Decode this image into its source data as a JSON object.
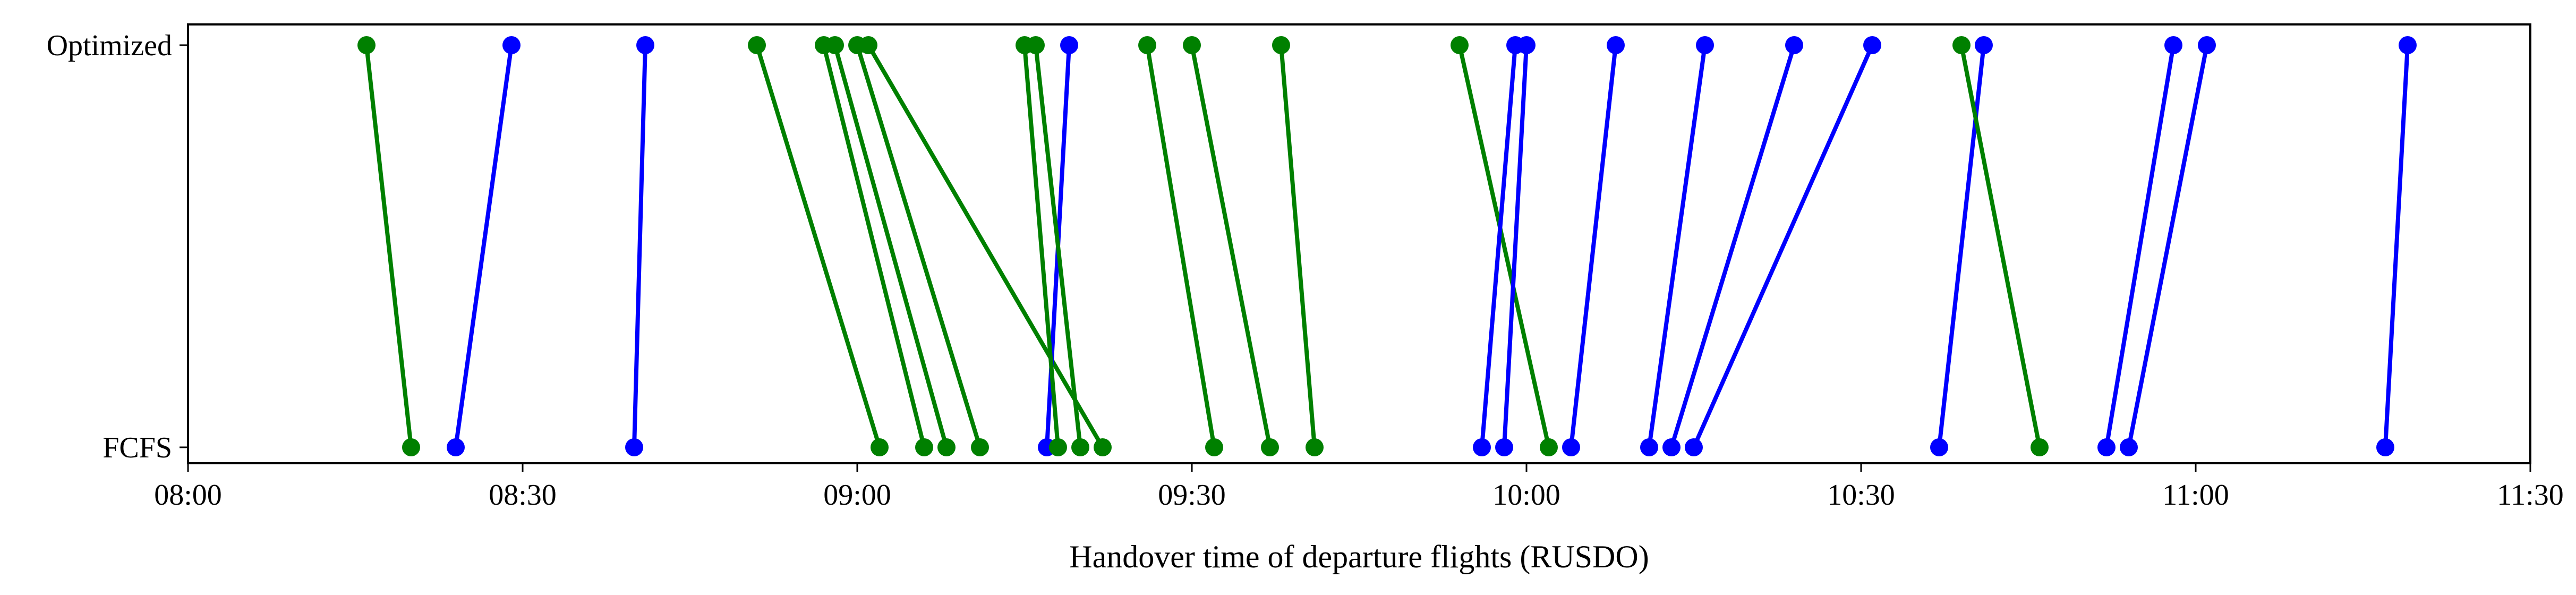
{
  "chart_data": {
    "type": "scatter",
    "xlabel": "Handover time of departure flights (RUSDO)",
    "ylabel": "",
    "x_unit": "time (HH:MM)",
    "xlim": [
      "08:00",
      "11:30"
    ],
    "x_ticks": [
      "08:00",
      "08:30",
      "09:00",
      "09:30",
      "10:00",
      "10:30",
      "11:00",
      "11:30"
    ],
    "y_categories": [
      "FCFS",
      "Optimized"
    ],
    "grid": false,
    "legend": "none",
    "colors": {
      "early": "#008000",
      "delayed": "#0000ff"
    },
    "series": [
      {
        "color": "early",
        "fcfs": "08:20",
        "optimized": "08:16"
      },
      {
        "color": "delayed",
        "fcfs": "08:24",
        "optimized": "08:29"
      },
      {
        "color": "delayed",
        "fcfs": "08:40",
        "optimized": "08:41"
      },
      {
        "color": "early",
        "fcfs": "09:02",
        "optimized": "08:51"
      },
      {
        "color": "early",
        "fcfs": "09:06",
        "optimized": "08:57"
      },
      {
        "color": "early",
        "fcfs": "09:08",
        "optimized": "08:58"
      },
      {
        "color": "early",
        "fcfs": "09:11",
        "optimized": "09:00"
      },
      {
        "color": "early",
        "fcfs": "09:22",
        "optimized": "09:01"
      },
      {
        "color": "delayed",
        "fcfs": "09:17",
        "optimized": "09:19"
      },
      {
        "color": "early",
        "fcfs": "09:18",
        "optimized": "09:15"
      },
      {
        "color": "early",
        "fcfs": "09:20",
        "optimized": "09:16"
      },
      {
        "color": "early",
        "fcfs": "09:32",
        "optimized": "09:26"
      },
      {
        "color": "early",
        "fcfs": "09:37",
        "optimized": "09:30"
      },
      {
        "color": "early",
        "fcfs": "09:41",
        "optimized": "09:38"
      },
      {
        "color": "early",
        "fcfs": "10:02",
        "optimized": "09:54"
      },
      {
        "color": "delayed",
        "fcfs": "09:56",
        "optimized": "09:59"
      },
      {
        "color": "delayed",
        "fcfs": "09:58",
        "optimized": "10:00"
      },
      {
        "color": "delayed",
        "fcfs": "10:04",
        "optimized": "10:08"
      },
      {
        "color": "delayed",
        "fcfs": "10:11",
        "optimized": "10:16"
      },
      {
        "color": "delayed",
        "fcfs": "10:13",
        "optimized": "10:24"
      },
      {
        "color": "delayed",
        "fcfs": "10:15",
        "optimized": "10:31"
      },
      {
        "color": "delayed",
        "fcfs": "10:37",
        "optimized": "10:41"
      },
      {
        "color": "early",
        "fcfs": "10:46",
        "optimized": "10:39"
      },
      {
        "color": "delayed",
        "fcfs": "10:52",
        "optimized": "10:58"
      },
      {
        "color": "delayed",
        "fcfs": "10:54",
        "optimized": "11:01"
      },
      {
        "color": "delayed",
        "fcfs": "11:17",
        "optimized": "11:19"
      }
    ]
  }
}
